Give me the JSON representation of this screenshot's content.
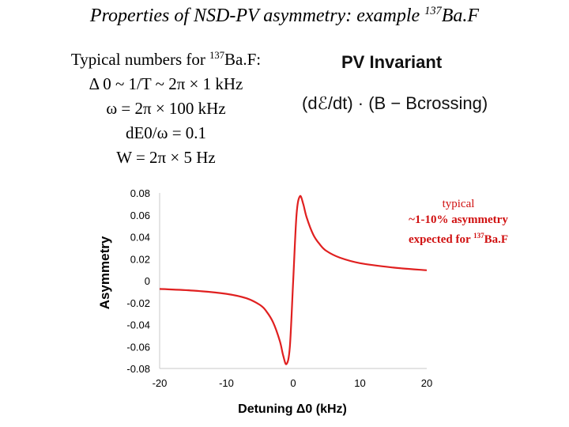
{
  "title": {
    "pre": "Properties of NSD-PV asymmetry: example ",
    "sup": "137",
    "post": "Ba.F"
  },
  "params": {
    "heading_pre": "Typical numbers for ",
    "heading_sup": "137",
    "heading_post": "Ba.F:",
    "line1": "Δ 0 ~ 1/T ~ 2π × 1 kHz",
    "line2": "ω = 2π × 100 kHz",
    "line3": "dE0/ω = 0.1",
    "line4": "W = 2π × 5 Hz"
  },
  "pv": {
    "title": "PV Invariant",
    "formula": "(dℰ/dt) · (B − Bcrossing)"
  },
  "note": {
    "line1": "typical",
    "line2": "~1-10% asymmetry",
    "line3_pre": "expected for ",
    "line3_sup": "137",
    "line3_post": "Ba.F"
  },
  "colors": {
    "curve": "#e02020",
    "note": "#d01010"
  },
  "chart_data": {
    "type": "line",
    "xlabel": "Detuning Δ0 (kHz)",
    "ylabel": "Asymmetry",
    "xlim": [
      -20,
      20
    ],
    "ylim": [
      -0.08,
      0.08
    ],
    "xticks": [
      "-20",
      "-10",
      "0",
      "10",
      "20"
    ],
    "yticks": [
      "0.08",
      "0.06",
      "0.04",
      "0.02",
      "0",
      "-0.02",
      "-0.04",
      "-0.06",
      "-0.08"
    ],
    "series": [
      {
        "x": [
          -20,
          -15,
          -10,
          -7,
          -5,
          -4,
          -3,
          -2,
          -1.5,
          -1,
          -0.5,
          0,
          0.5,
          1,
          1.5,
          2,
          3,
          4,
          5,
          7,
          10,
          15,
          20
        ],
        "y": [
          -0.0075,
          -0.009,
          -0.012,
          -0.016,
          -0.022,
          -0.028,
          -0.038,
          -0.055,
          -0.068,
          -0.076,
          -0.06,
          0.0,
          0.06,
          0.077,
          0.07,
          0.058,
          0.042,
          0.033,
          0.027,
          0.021,
          0.016,
          0.012,
          0.0095
        ]
      }
    ]
  }
}
